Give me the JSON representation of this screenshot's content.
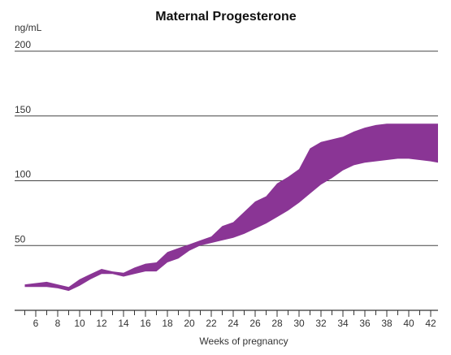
{
  "chart_data": {
    "type": "area",
    "title": "Maternal Progesterone",
    "ylabel": "ng/mL",
    "xlabel": "Weeks of pregnancy",
    "xlim": [
      4,
      43
    ],
    "ylim": [
      0,
      200
    ],
    "x_ticks": [
      6,
      8,
      10,
      12,
      14,
      16,
      18,
      20,
      22,
      24,
      26,
      28,
      30,
      32,
      34,
      36,
      38,
      40,
      42
    ],
    "y_ticks": [
      50,
      100,
      150,
      200
    ],
    "grid": "horizontal",
    "color": "#8a3595",
    "series": [
      {
        "x": [
          5,
          6,
          7,
          8,
          9,
          10,
          11,
          12,
          13,
          14,
          15,
          16,
          17,
          18,
          19,
          20,
          21,
          22,
          23,
          24,
          25,
          26,
          27,
          28,
          29,
          30,
          31,
          32,
          33,
          34,
          35,
          36,
          37,
          38,
          39,
          40,
          41,
          42,
          43
        ],
        "upper": [
          20,
          21,
          22,
          20,
          18,
          24,
          28,
          32,
          30,
          29,
          33,
          36,
          37,
          45,
          48,
          51,
          54,
          57,
          65,
          68,
          76,
          84,
          88,
          98,
          103,
          109,
          125,
          130,
          132,
          134,
          138,
          141,
          143,
          144,
          144,
          144,
          144,
          144,
          144
        ],
        "lower": [
          18,
          18,
          18,
          17,
          15,
          19,
          24,
          28,
          28,
          26,
          28,
          30,
          30,
          37,
          40,
          46,
          50,
          52,
          54,
          56,
          59,
          63,
          67,
          72,
          77,
          83,
          90,
          97,
          102,
          108,
          112,
          114,
          115,
          116,
          117,
          117,
          116,
          115,
          114
        ]
      }
    ]
  }
}
